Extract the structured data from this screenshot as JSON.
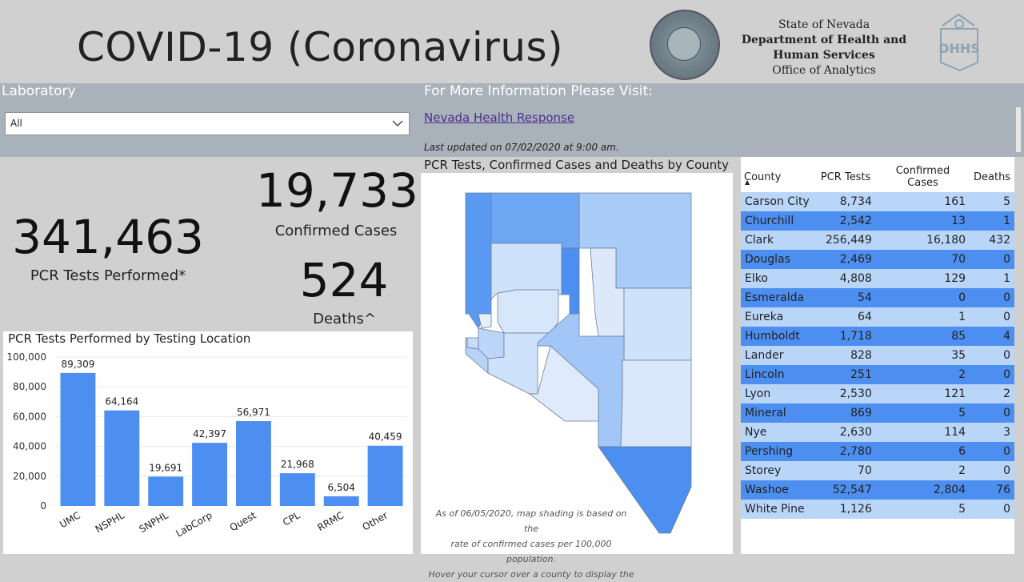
{
  "header": {
    "title": "COVID-19 (Coronavirus)",
    "agency_line1": "State of Nevada",
    "agency_line2": "Department of Health and",
    "agency_line3": "Human Services",
    "agency_line4": "Office of Analytics"
  },
  "laboratory": {
    "label": "Laboratory",
    "selected": "All"
  },
  "info": {
    "label": "For More Information Please Visit:",
    "link_text": "Nevada Health Response",
    "updated": "Last updated on 07/02/2020 at 9:00 am."
  },
  "kpis": {
    "tests_value": "341,463",
    "tests_label": "PCR Tests Performed*",
    "cases_value": "19,733",
    "cases_label": "Confirmed Cases",
    "deaths_value": "524",
    "deaths_label": "Deaths^"
  },
  "map": {
    "title": "PCR Tests, Confirmed Cases and Deaths by County",
    "note_line1": "As of 06/05/2020, map shading is based on the",
    "note_line2": "rate of confirmed cases per 100,000 population.",
    "note_line3": "Hover your cursor over a county to display the"
  },
  "chart_data": {
    "type": "bar",
    "title": "PCR Tests Performed by Testing Location",
    "categories": [
      "UMC",
      "NSPHL",
      "SNPHL",
      "LabCorp",
      "Quest",
      "CPL",
      "RRMC",
      "Other"
    ],
    "values": [
      89309,
      64164,
      19691,
      42397,
      56971,
      21968,
      6504,
      40459
    ],
    "data_labels": [
      "89,309",
      "64,164",
      "19,691",
      "42,397",
      "56,971",
      "21,968",
      "6,504",
      "40,459"
    ],
    "yticks": [
      "0",
      "20,000",
      "40,000",
      "60,000",
      "80,000",
      "100,000"
    ],
    "ylim": [
      0,
      100000
    ],
    "grid": true,
    "bar_color": "#4d8ff0"
  },
  "table": {
    "headers": [
      "County",
      "PCR Tests",
      "Confirmed Cases",
      "Deaths"
    ],
    "rows": [
      [
        "Carson City",
        "8,734",
        "161",
        "5"
      ],
      [
        "Churchill",
        "2,542",
        "13",
        "1"
      ],
      [
        "Clark",
        "256,449",
        "16,180",
        "432"
      ],
      [
        "Douglas",
        "2,469",
        "70",
        "0"
      ],
      [
        "Elko",
        "4,808",
        "129",
        "1"
      ],
      [
        "Esmeralda",
        "54",
        "0",
        "0"
      ],
      [
        "Eureka",
        "64",
        "1",
        "0"
      ],
      [
        "Humboldt",
        "1,718",
        "85",
        "4"
      ],
      [
        "Lander",
        "828",
        "35",
        "0"
      ],
      [
        "Lincoln",
        "251",
        "2",
        "0"
      ],
      [
        "Lyon",
        "2,530",
        "121",
        "2"
      ],
      [
        "Mineral",
        "869",
        "5",
        "0"
      ],
      [
        "Nye",
        "2,630",
        "114",
        "3"
      ],
      [
        "Pershing",
        "2,780",
        "6",
        "0"
      ],
      [
        "Storey",
        "70",
        "2",
        "0"
      ],
      [
        "Washoe",
        "52,547",
        "2,804",
        "76"
      ],
      [
        "White Pine",
        "1,126",
        "5",
        "0"
      ]
    ]
  }
}
